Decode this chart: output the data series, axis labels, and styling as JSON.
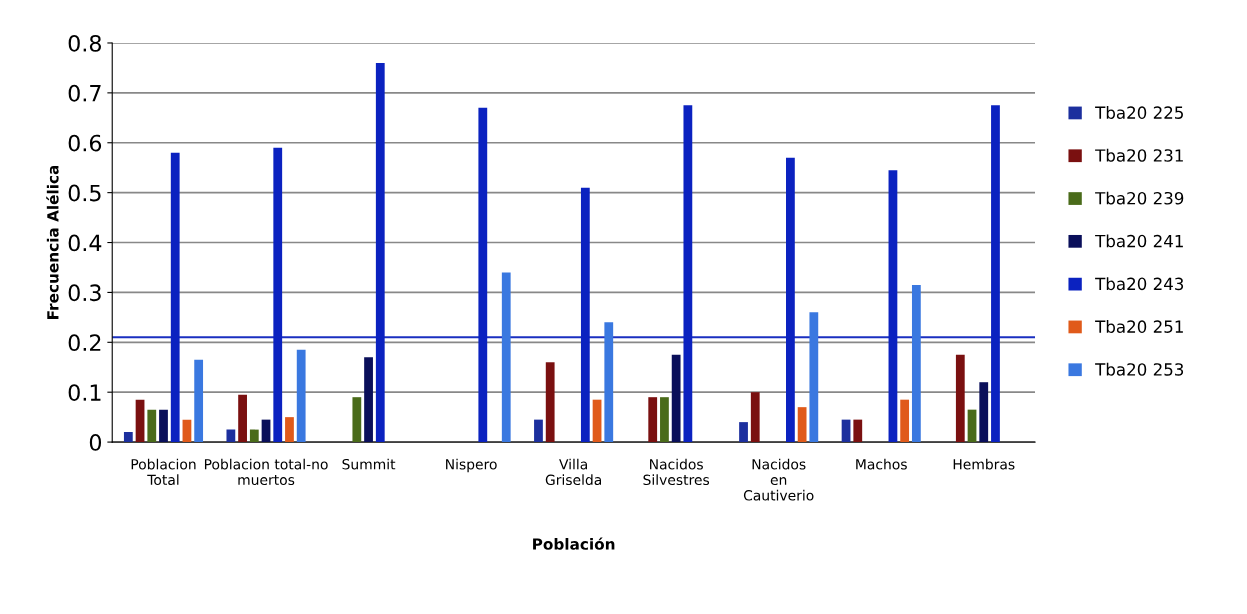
{
  "chart_data": {
    "type": "bar",
    "xlabel": "Población",
    "ylabel": "Frecuencia Alélica",
    "categories": [
      "Poblacion\nTotal",
      "Poblacion total-no\nmuertos",
      "Summit",
      "Nispero",
      "Villa\nGriselda",
      "Nacidos\nSilvestres",
      "Nacidos\nen\nCautiverio",
      "Machos",
      "Hembras"
    ],
    "series": [
      {
        "name": "Tba20 225",
        "color": "#1c2f9e",
        "values": [
          0.02,
          0.025,
          0,
          0,
          0.045,
          0,
          0.04,
          0.045,
          0
        ]
      },
      {
        "name": "Tba20 231",
        "color": "#7a1010",
        "values": [
          0.085,
          0.095,
          0,
          0,
          0.16,
          0.09,
          0.1,
          0.045,
          0.175
        ]
      },
      {
        "name": "Tba20 239",
        "color": "#4a6b1a",
        "values": [
          0.065,
          0.025,
          0.09,
          0,
          0,
          0.09,
          0,
          0,
          0.065
        ]
      },
      {
        "name": "Tba20 241",
        "color": "#0a0f5a",
        "values": [
          0.065,
          0.045,
          0.17,
          0,
          0,
          0.175,
          0,
          0,
          0.12
        ]
      },
      {
        "name": "Tba20 243",
        "color": "#0b22c0",
        "values": [
          0.58,
          0.59,
          0.76,
          0.67,
          0.51,
          0.675,
          0.57,
          0.545,
          0.675
        ]
      },
      {
        "name": "Tba20 251",
        "color": "#e05a1a",
        "values": [
          0.045,
          0.05,
          0,
          0,
          0.085,
          0,
          0.07,
          0.085,
          0
        ]
      },
      {
        "name": "Tba20 253",
        "color": "#3a78e0",
        "values": [
          0.165,
          0.185,
          0,
          0.34,
          0.24,
          0,
          0.26,
          0.315,
          0
        ]
      }
    ],
    "ylim": [
      0,
      0.8
    ],
    "yticks": [
      0,
      0.1,
      0.2,
      0.3,
      0.4,
      0.5,
      0.6,
      0.7,
      0.8
    ],
    "grid": "y",
    "legend": "right",
    "ref_lines": [
      {
        "axis": "y",
        "value": 0.21,
        "color": "#1a2fc0"
      }
    ]
  }
}
